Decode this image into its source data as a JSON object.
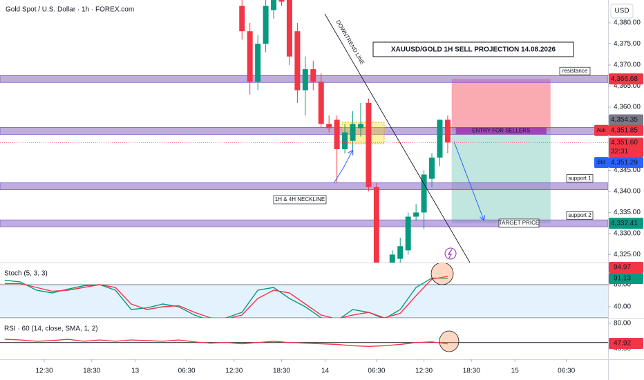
{
  "chart_data": [
    {
      "type": "candlestick",
      "title": "Gold Spot / U.S. Dollar · 1h · FOREX.com",
      "currency": "USD",
      "annotation_title": "XAUUSD/GOLD 1H SELL PROJECTION 14.08.2026",
      "trendline_label": "DOWNTREND LINE",
      "neckline_label": "1H & 4H NECKLINE",
      "target_label": "TARGET PRICE",
      "up_color": "#089981",
      "down_color": "#f23645",
      "x": [
        25,
        26,
        27,
        28,
        29,
        30,
        31,
        32,
        33,
        34,
        35,
        36,
        37,
        38,
        39,
        40,
        41,
        42,
        43,
        44,
        45,
        46,
        47,
        48,
        49,
        50,
        51
      ],
      "open": [
        4384,
        4378,
        4366,
        4375,
        4383,
        4386,
        4386,
        4378,
        4364,
        4369,
        4366,
        4356,
        4357,
        4350,
        4352,
        4355,
        4361,
        4341,
        4320,
        4322,
        4324,
        4326,
        4334,
        4335,
        4343,
        4348,
        4357
      ],
      "high": [
        4386,
        4380,
        4377,
        4386,
        4387,
        4388,
        4387,
        4380,
        4372,
        4371,
        4368,
        4358,
        4358,
        4356,
        4359,
        4361,
        4362,
        4342,
        4322,
        4326,
        4329,
        4335,
        4337,
        4345,
        4349,
        4357,
        4358
      ],
      "low": [
        4376,
        4363,
        4364,
        4373,
        4381,
        4384,
        4370,
        4361,
        4358,
        4364,
        4355,
        4354,
        4342,
        4349,
        4350,
        4353,
        4340,
        4318,
        4316,
        4321,
        4323,
        4325,
        4333,
        4331,
        4341,
        4346,
        4349
      ],
      "close": [
        4378,
        4366,
        4375,
        4384,
        4386,
        4385,
        4372,
        4364,
        4369,
        4366,
        4356,
        4355,
        4350,
        4354,
        4356,
        4356,
        4341,
        4320,
        4318,
        4325,
        4327,
        4334,
        4335,
        4344,
        4348,
        4357,
        4351.6
      ],
      "last_label": "4,351.60",
      "countdown": "32:31",
      "xlim": [
        -5.59,
        71.27
      ],
      "xticks": [
        {
          "value": 0,
          "label": "12:30"
        },
        {
          "value": 6,
          "label": "18:30"
        },
        {
          "value": 11.5,
          "label": "13"
        },
        {
          "value": 18,
          "label": "06:30"
        },
        {
          "value": 24,
          "label": "12:30"
        },
        {
          "value": 30,
          "label": "18:30"
        },
        {
          "value": 35.5,
          "label": "14"
        },
        {
          "value": 42,
          "label": "06:30"
        },
        {
          "value": 48,
          "label": "12:30"
        },
        {
          "value": 54,
          "label": "18:30"
        },
        {
          "value": 59.5,
          "label": "15"
        },
        {
          "value": 66,
          "label": "06:30"
        }
      ],
      "ylim": [
        4323.11,
        4385.41
      ],
      "yticks": [
        {
          "value": 4380,
          "label": "4,380.00"
        },
        {
          "value": 4375,
          "label": "4,375.00"
        },
        {
          "value": 4370,
          "label": "4,370.00"
        },
        {
          "value": 4365,
          "label": "4,365.00"
        },
        {
          "value": 4360,
          "label": "4,360.00"
        },
        {
          "value": 4345,
          "label": "4,345.00"
        },
        {
          "value": 4340,
          "label": "4,340.00"
        },
        {
          "value": 4335,
          "label": "4,335.00"
        },
        {
          "value": 4330,
          "label": "4,330.00"
        },
        {
          "value": 4325,
          "label": "4,325.00"
        }
      ],
      "levels": [
        {
          "name": "resistance",
          "value": 4366.68,
          "label": "4,366.68",
          "color": "#f23645"
        },
        {
          "name": "ENTRY FOR SELLERS",
          "value": 4354.35,
          "label": "4,354.35",
          "color": "#787b86"
        },
        {
          "name": "support 1",
          "value": 4341.2
        },
        {
          "name": "support 2",
          "value": 4332.41,
          "label": "4,332.41",
          "color": "#089981"
        }
      ],
      "position_x": [
        51.5,
        64
      ],
      "quote": {
        "ask": {
          "name": "Ask",
          "value": 4351.85,
          "label": "4,351.85"
        },
        "bid": {
          "name": "Bid",
          "value": 4351.29,
          "label": "4,351.29"
        }
      }
    },
    {
      "type": "line",
      "title": "Stoch (5, 3, 3)",
      "x": [
        -5,
        -3,
        -1,
        1,
        3,
        5,
        7,
        9,
        11,
        13,
        15,
        17,
        19,
        21,
        23,
        25,
        27,
        29,
        31,
        33,
        35,
        37,
        39,
        41,
        43,
        45,
        47,
        49,
        51
      ],
      "series": [
        {
          "color": "#089981",
          "values": [
            88,
            85,
            70,
            65,
            72,
            78,
            80,
            70,
            35,
            38,
            45,
            40,
            25,
            15,
            20,
            30,
            70,
            75,
            55,
            40,
            20,
            15,
            35,
            30,
            18,
            35,
            75,
            92,
            91.13
          ]
        },
        {
          "color": "#f23645",
          "values": [
            82,
            82,
            75,
            68,
            70,
            75,
            80,
            75,
            45,
            35,
            40,
            42,
            30,
            20,
            18,
            25,
            55,
            70,
            65,
            45,
            25,
            18,
            25,
            30,
            20,
            28,
            60,
            90,
            94.97
          ]
        }
      ],
      "ylim": [
        20,
        118.75
      ],
      "yticks": [
        {
          "value": 80,
          "label": "80.00"
        },
        {
          "value": 40,
          "label": "40.00"
        }
      ],
      "band": [
        20,
        80
      ]
    },
    {
      "type": "line",
      "title": "RSI · 60 (14, close, SMA, 1, 2)",
      "x": [
        -5,
        -3,
        -1,
        1,
        3,
        5,
        7,
        9,
        11,
        13,
        15,
        17,
        19,
        21,
        23,
        25,
        27,
        29,
        31,
        33,
        35,
        37,
        39,
        41,
        43,
        45,
        47,
        49,
        51
      ],
      "series": [
        {
          "color": "#f23645",
          "values": [
            55,
            54,
            52,
            53,
            55,
            52,
            54,
            52,
            54,
            53,
            52,
            54,
            51,
            49,
            50,
            48,
            50,
            52,
            50,
            49,
            48,
            47,
            45,
            44,
            45,
            47,
            50,
            51,
            47.92
          ]
        }
      ],
      "ylim": [
        23.8,
        87.6
      ],
      "yticks": [
        {
          "value": 80,
          "label": "80.00"
        },
        {
          "value": 40,
          "label": "40.00"
        }
      ],
      "hline": 50
    }
  ]
}
